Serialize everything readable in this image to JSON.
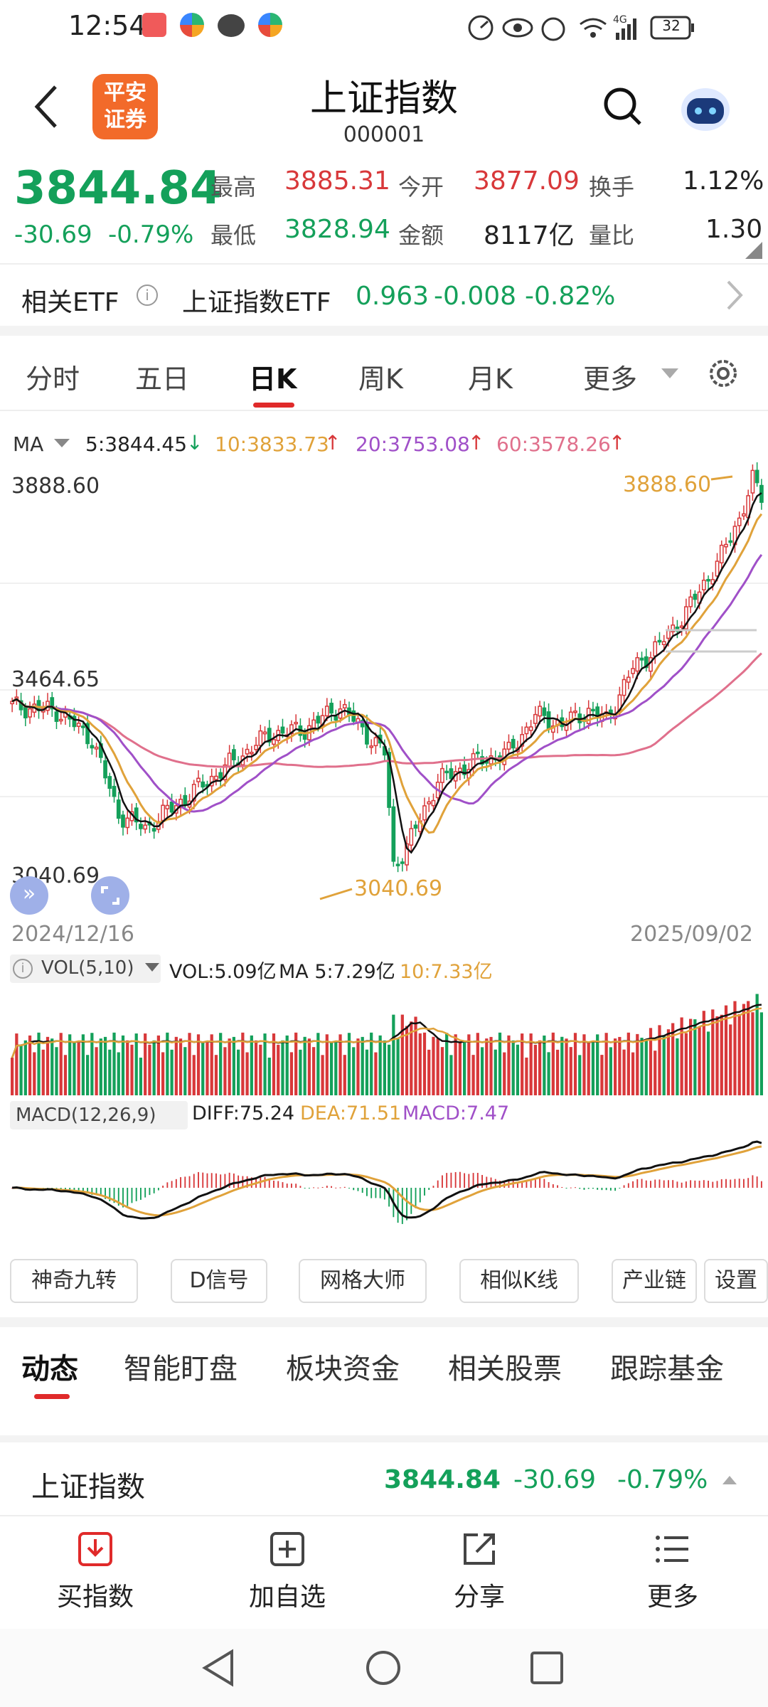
{
  "status_bar": {
    "time": "12:54",
    "signal": "4G",
    "battery": "32"
  },
  "header": {
    "title": "上证指数",
    "code": "000001",
    "logo_line1": "平安",
    "logo_line2": "证券"
  },
  "quote": {
    "price": "3844.84",
    "change": "-30.69",
    "change_pct": "-0.79%",
    "high_label": "最高",
    "high": "3885.31",
    "open_label": "今开",
    "open": "3877.09",
    "turnover_label": "换手",
    "turnover": "1.12%",
    "low_label": "最低",
    "low": "3828.94",
    "amount_label": "金额",
    "amount": "8117亿",
    "volratio_label": "量比",
    "volratio": "1.30"
  },
  "etf": {
    "label": "相关ETF",
    "name": "上证指数ETF",
    "price": "0.963",
    "change": "-0.008",
    "change_pct": "-0.82%"
  },
  "chart_tabs": [
    "分时",
    "五日",
    "日K",
    "周K",
    "月K",
    "更多"
  ],
  "ma_legend": {
    "label": "MA",
    "ma5": "5:3844.45",
    "ma10": "10:3833.73",
    "ma20": "20:3753.08",
    "ma60": "60:3578.26"
  },
  "chart_data": {
    "type": "candlestick",
    "y_labels": [
      "3888.60",
      "3464.65",
      "3040.69"
    ],
    "max_label": "3888.60",
    "min_label": "3040.69",
    "x_start": "2024/12/16",
    "x_end": "2025/09/02",
    "ylim": [
      3040.69,
      3888.6
    ],
    "vol_legend": {
      "label": "VOL(5,10)",
      "vol": "VOL:5.09亿",
      "ma5": "MA 5:7.29亿",
      "ma10": "10:7.33亿"
    },
    "macd_legend": {
      "label": "MACD(12,26,9)",
      "diff": "DIFF:75.24",
      "dea": "DEA:71.51",
      "macd": "MACD:7.47"
    },
    "colors": {
      "up": "#d8383a",
      "down": "#14a05a",
      "ma5": "#111111",
      "ma10": "#e0a23a",
      "ma20": "#a050c8",
      "ma60": "#e0708c"
    }
  },
  "tool_buttons": [
    "神奇九转",
    "D信号",
    "网格大师",
    "相似K线",
    "产业链",
    "设置"
  ],
  "bottom_tabs": [
    "动态",
    "智能盯盘",
    "板块资金",
    "相关股票",
    "跟踪基金"
  ],
  "ticker": {
    "name": "上证指数",
    "price": "3844.84",
    "change": "-30.69",
    "change_pct": "-0.79%"
  },
  "toolbar": {
    "buy": "买指数",
    "add": "加自选",
    "share": "分享",
    "more": "更多"
  }
}
